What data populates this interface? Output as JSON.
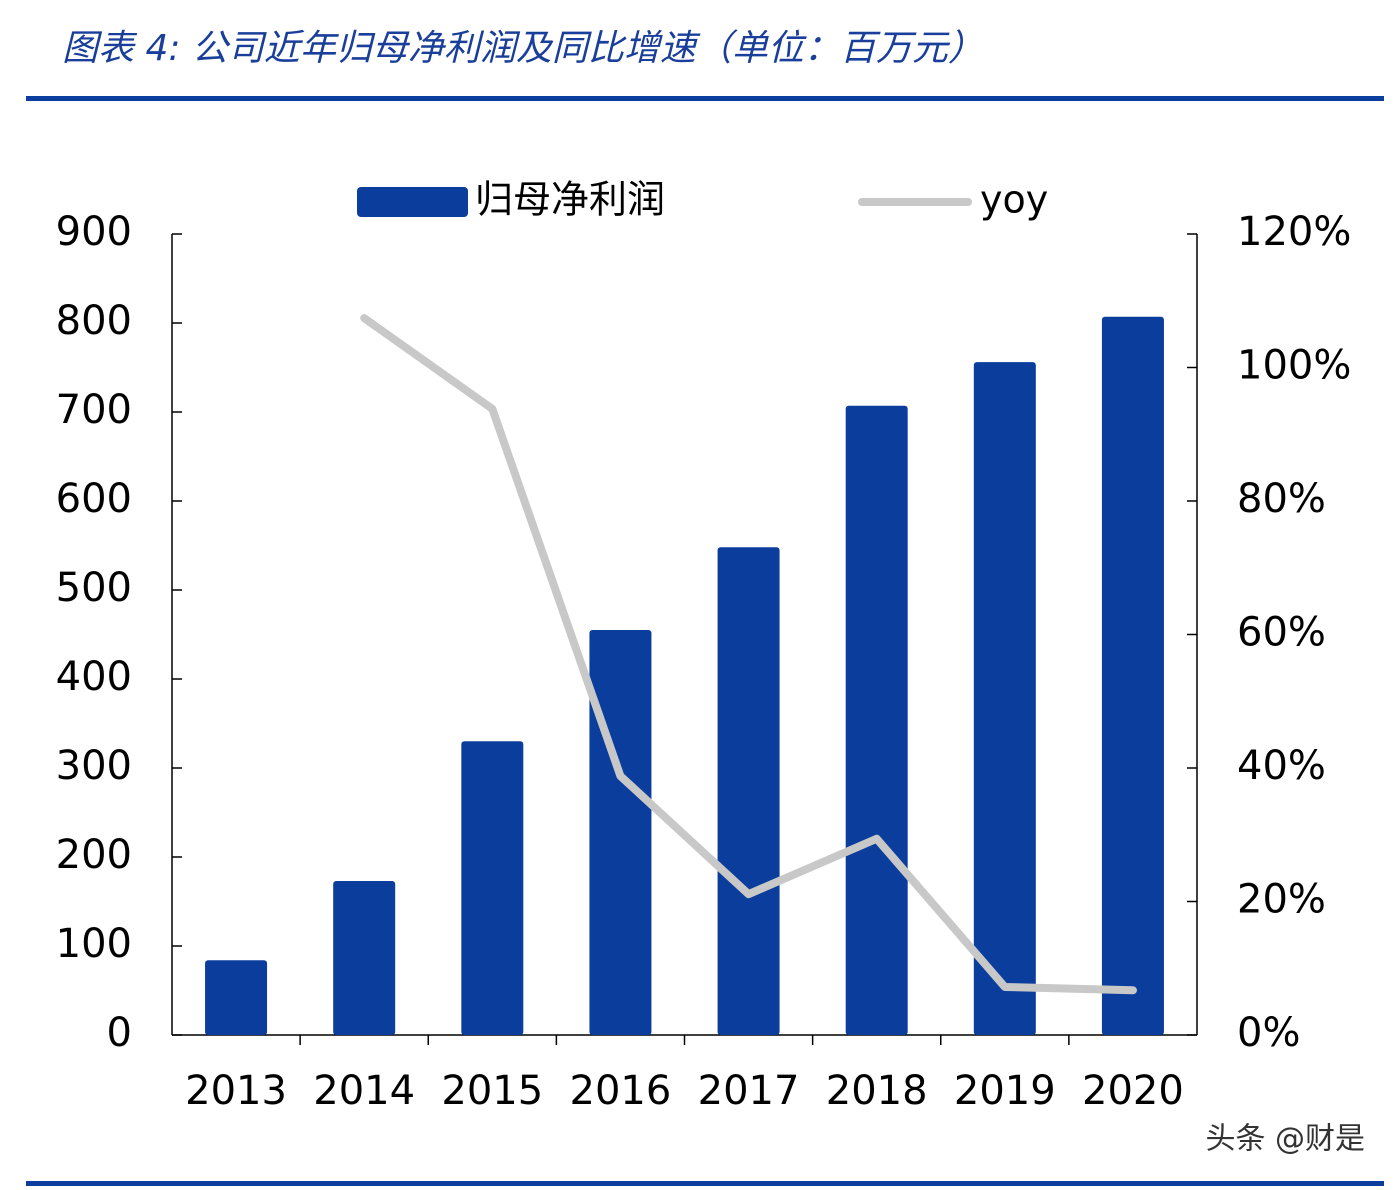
{
  "chart_data": {
    "type": "bar_line",
    "title": "图表 4:  公司近年归母净利润及同比增速（单位：百万元）",
    "watermark": "头条 @财是",
    "categories": [
      "2013",
      "2014",
      "2015",
      "2016",
      "2017",
      "2018",
      "2019",
      "2020"
    ],
    "series": [
      {
        "name": "归母净利润",
        "type": "bar",
        "color": "#0a3d9c",
        "axis": "y",
        "values": [
          84,
          173,
          330,
          455,
          548,
          707,
          756,
          807
        ]
      },
      {
        "name": "yoy",
        "type": "line",
        "color": "#c8c8c8",
        "axis": "y2",
        "values": [
          null,
          107.4,
          93.8,
          38.8,
          21.1,
          29.4,
          7.2,
          6.7
        ]
      }
    ],
    "ylim": [
      0,
      900
    ],
    "yticks": [
      0,
      100,
      200,
      300,
      400,
      500,
      600,
      700,
      800,
      900
    ],
    "y2lim": [
      0,
      120
    ],
    "y2ticks": [
      {
        "value": 0,
        "label": "0%"
      },
      {
        "value": 20,
        "label": "20%"
      },
      {
        "value": 40,
        "label": "40%"
      },
      {
        "value": 60,
        "label": "60%"
      },
      {
        "value": 80,
        "label": "80%"
      },
      {
        "value": 100,
        "label": "100%"
      },
      {
        "value": 120,
        "label": "120%"
      }
    ],
    "legend": "top",
    "grid": false
  }
}
